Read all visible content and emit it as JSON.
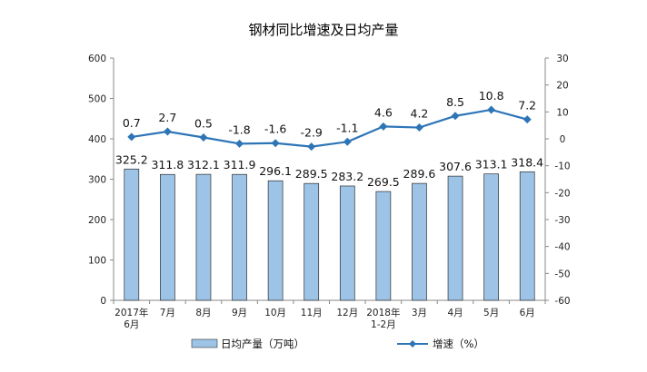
{
  "chart_data": {
    "type": "bar",
    "title": "钢材同比增速及日均产量",
    "categories": [
      [
        "2017年",
        "6月"
      ],
      [
        "7月"
      ],
      [
        "8月"
      ],
      [
        "9月"
      ],
      [
        "10月"
      ],
      [
        "11月"
      ],
      [
        "12月"
      ],
      [
        "2018年",
        "1-2月"
      ],
      [
        "3月"
      ],
      [
        "4月"
      ],
      [
        "5月"
      ],
      [
        "6月"
      ]
    ],
    "series": [
      {
        "name": "日均产量（万吨）",
        "type": "bar",
        "axis": "left",
        "color": "#9dc3e6",
        "values": [
          325.2,
          311.8,
          312.1,
          311.9,
          296.1,
          289.5,
          283.2,
          269.5,
          289.6,
          307.6,
          313.1,
          318.4
        ],
        "labels": [
          "325.2",
          "311.8",
          "312.1",
          "311.9",
          "296.1",
          "289.5",
          "283.2",
          "269.5",
          "289.6",
          "307.6",
          "313.1",
          "318.4"
        ]
      },
      {
        "name": "增速（%）",
        "type": "line",
        "axis": "right",
        "color": "#2e75b6",
        "values": [
          0.7,
          2.7,
          0.5,
          -1.8,
          -1.6,
          -2.9,
          -1.1,
          4.6,
          4.2,
          8.5,
          10.8,
          7.2
        ],
        "labels": [
          "0.7",
          "2.7",
          "0.5",
          "-1.8",
          "-1.6",
          "-2.9",
          "-1.1",
          "4.6",
          "4.2",
          "8.5",
          "10.8",
          "7.2"
        ]
      }
    ],
    "y_left": {
      "ylim": [
        0,
        600
      ],
      "ticks": [
        "0",
        "100",
        "200",
        "300",
        "400",
        "500",
        "600"
      ]
    },
    "y_right": {
      "ylim": [
        -60,
        30
      ],
      "ticks": [
        "-60",
        "-50",
        "-40",
        "-30",
        "-20",
        "-10",
        "0",
        "10",
        "20",
        "30"
      ]
    },
    "grid": false,
    "legend": "bottom"
  }
}
